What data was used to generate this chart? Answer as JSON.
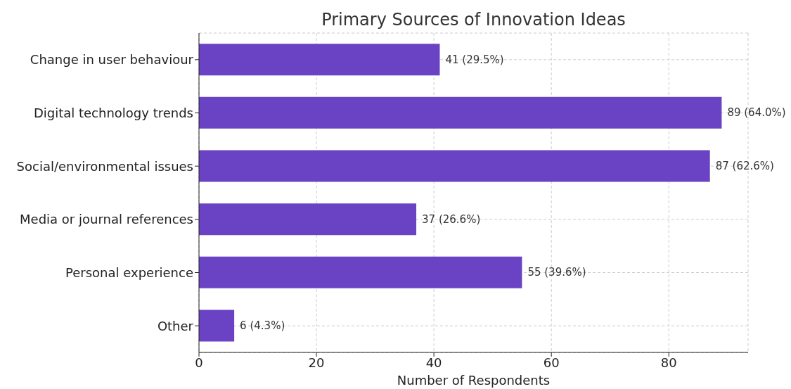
{
  "chart_data": {
    "type": "bar",
    "orientation": "horizontal",
    "title": "Primary Sources of Innovation Ideas",
    "xlabel": "Number of Respondents",
    "categories": [
      "Change in user behaviour",
      "Digital technology trends",
      "Social/environmental issues",
      "Media or journal references",
      "Personal experience",
      "Other"
    ],
    "values": [
      41,
      89,
      87,
      37,
      55,
      6
    ],
    "value_labels": [
      "41 (29.5%)",
      "89 (64.0%)",
      "87 (62.6%)",
      "37 (26.6%)",
      "55 (39.6%)",
      "6 (4.3%)"
    ],
    "color": "#6a43c4",
    "xlim": [
      0,
      93.5
    ],
    "xticks": [
      0,
      20,
      40,
      60,
      80
    ],
    "grid": true
  }
}
